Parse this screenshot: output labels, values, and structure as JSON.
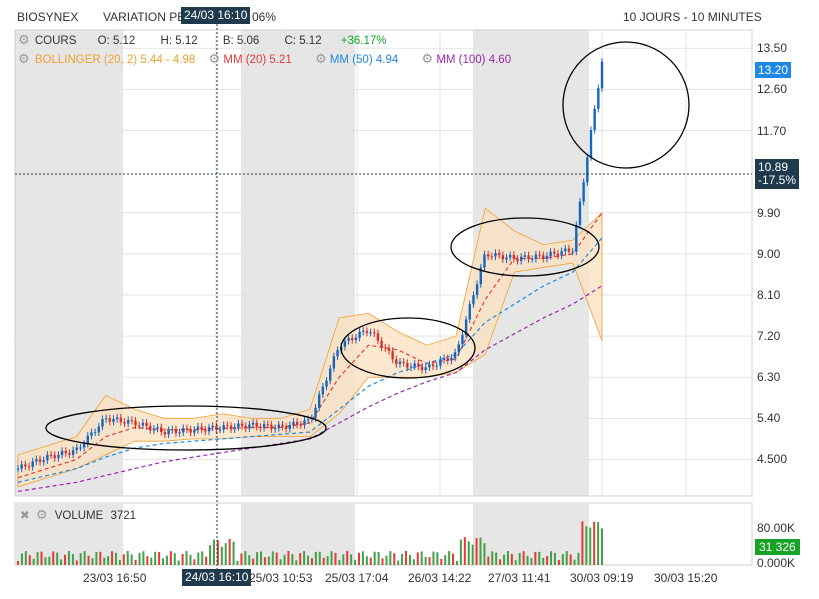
{
  "header": {
    "symbol": "BIOSYNEX",
    "variation": "VARIATION PE",
    "variation_tail": "06%",
    "timeframe": "10 JOURS - 10 MINUTES",
    "crosshair_time": "24/03 16:10"
  },
  "ohlc": {
    "label": "COURS",
    "o_label": "O:",
    "o": "5.12",
    "h_label": "H:",
    "h": "5.12",
    "b_label": "B:",
    "b": "5.06",
    "c_label": "C:",
    "c": "5.12",
    "change": "+36.17%"
  },
  "indicators": {
    "bollinger_label": "BOLLINGER (20, 2)",
    "bollinger_values": "5.44 - 4.98",
    "mm20_label": "MM (20)",
    "mm20_value": "5.21",
    "mm50_label": "MM (50)",
    "mm50_value": "4.94",
    "mm100_label": "MM (100)",
    "mm100_value": "4.60"
  },
  "badges": {
    "last_price": "13.20",
    "cursor_price": "10.89",
    "cursor_change": "-17.5%",
    "volume_last": "31 326"
  },
  "volume_panel": {
    "label": "VOLUME",
    "value": "3721",
    "axis_top": "80.00K",
    "axis_zero": "0.000K"
  },
  "colors": {
    "bollinger": "#f0a030",
    "mm20": "#e53935",
    "mm50": "#1e88e5",
    "mm100": "#9c27b0",
    "up": "#1565c0",
    "down": "#d32f2f",
    "vol_up": "#43a047",
    "vol_down": "#e53935",
    "session_shade": "#e6e6e6"
  },
  "chart_data": {
    "type": "candlestick",
    "y_ticks": [
      "13.50",
      "12.60",
      "11.70",
      "9.90",
      "9.00",
      "8.10",
      "7.20",
      "6.30",
      "5.40",
      "4.500"
    ],
    "x_ticks": [
      "23/03 16:50",
      "24/03 16:10",
      "25/03 10:53",
      "25/03 17:04",
      "26/03 14:22",
      "27/03 11:41",
      "30/03 09:19",
      "30/03 15:20"
    ],
    "ylim": [
      3.7,
      13.9
    ],
    "series": [
      {
        "name": "COURS",
        "values": [
          4.3,
          4.55,
          4.7,
          5.4,
          5.3,
          5.1,
          5.15,
          5.2,
          5.25,
          5.2,
          5.35,
          7.0,
          7.35,
          6.6,
          6.5,
          6.8,
          9.0,
          8.9,
          8.95,
          9.1,
          13.2
        ]
      },
      {
        "name": "BOLLINGER upper",
        "values": [
          4.6,
          4.8,
          5.0,
          5.9,
          5.6,
          5.4,
          5.4,
          5.5,
          5.4,
          5.4,
          5.6,
          7.6,
          7.7,
          7.3,
          7.0,
          7.2,
          10.0,
          9.5,
          9.2,
          9.3,
          9.9
        ]
      },
      {
        "name": "BOLLINGER lower",
        "values": [
          3.9,
          4.1,
          4.3,
          4.6,
          4.9,
          4.9,
          4.95,
          4.95,
          5.0,
          5.0,
          5.0,
          5.5,
          6.3,
          6.3,
          6.3,
          6.4,
          6.8,
          8.6,
          8.7,
          8.8,
          7.1
        ]
      },
      {
        "name": "MM (20)",
        "values": [
          4.1,
          4.3,
          4.5,
          5.0,
          5.2,
          5.15,
          5.15,
          5.18,
          5.2,
          5.2,
          5.3,
          6.3,
          7.0,
          6.9,
          6.6,
          6.7,
          8.0,
          8.9,
          8.9,
          9.0,
          9.9
        ]
      },
      {
        "name": "MM (50)",
        "values": [
          4.0,
          4.15,
          4.3,
          4.55,
          4.75,
          4.85,
          4.9,
          4.95,
          5.0,
          5.05,
          5.1,
          5.6,
          6.1,
          6.4,
          6.6,
          6.8,
          7.5,
          7.9,
          8.3,
          8.6,
          9.35
        ]
      },
      {
        "name": "MM (100)",
        "values": [
          3.8,
          3.9,
          4.0,
          4.15,
          4.3,
          4.45,
          4.55,
          4.65,
          4.75,
          4.85,
          4.95,
          5.3,
          5.65,
          5.95,
          6.2,
          6.4,
          6.9,
          7.25,
          7.6,
          7.9,
          8.3
        ]
      }
    ],
    "volume_ylim": [
      0,
      80000
    ]
  }
}
